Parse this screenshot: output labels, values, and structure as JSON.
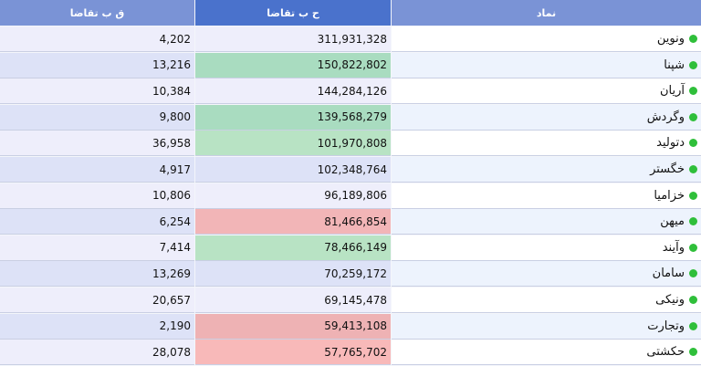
{
  "headers": {
    "col_q": "ق ب تقاضا",
    "col_h": "ح ب تقاضا",
    "col_symbol": "نماد"
  },
  "rows": [
    {
      "symbol": "ونوین",
      "h": "311,931,328",
      "q": "4,202",
      "q_bg": "#eeeefb",
      "h_bg": "#eeeefb",
      "s_bg": "#ffffff"
    },
    {
      "symbol": "شپنا",
      "h": "150,822,802",
      "q": "13,216",
      "q_bg": "#dde2f7",
      "h_bg": "#a9dcc0",
      "s_bg": "#edf3fd"
    },
    {
      "symbol": "آریان",
      "h": "144,284,126",
      "q": "10,384",
      "q_bg": "#eeeefb",
      "h_bg": "#eeeefb",
      "s_bg": "#ffffff"
    },
    {
      "symbol": "وگردش",
      "h": "139,568,279",
      "q": "9,800",
      "q_bg": "#dde2f7",
      "h_bg": "#a9dcc0",
      "s_bg": "#edf3fd"
    },
    {
      "symbol": "دتولید",
      "h": "101,970,808",
      "q": "36,958",
      "q_bg": "#eeeefb",
      "h_bg": "#b8e3c4",
      "s_bg": "#ffffff"
    },
    {
      "symbol": "خگستر",
      "h": "102,348,764",
      "q": "4,917",
      "q_bg": "#dde2f7",
      "h_bg": "#dde2f7",
      "s_bg": "#edf3fd"
    },
    {
      "symbol": "خزامیا",
      "h": "96,189,806",
      "q": "10,806",
      "q_bg": "#eeeefb",
      "h_bg": "#eeeefb",
      "s_bg": "#ffffff"
    },
    {
      "symbol": "میهن",
      "h": "81,466,854",
      "q": "6,254",
      "q_bg": "#dde2f7",
      "h_bg": "#f2b5b7",
      "s_bg": "#edf3fd"
    },
    {
      "symbol": "وآیند",
      "h": "78,466,149",
      "q": "7,414",
      "q_bg": "#eeeefb",
      "h_bg": "#b8e3c4",
      "s_bg": "#ffffff"
    },
    {
      "symbol": "سامان",
      "h": "70,259,172",
      "q": "13,269",
      "q_bg": "#dde2f7",
      "h_bg": "#dde2f7",
      "s_bg": "#edf3fd"
    },
    {
      "symbol": "ونیکی",
      "h": "69,145,478",
      "q": "20,657",
      "q_bg": "#eeeefb",
      "h_bg": "#eeeefb",
      "s_bg": "#ffffff"
    },
    {
      "symbol": "وتجارت",
      "h": "59,413,108",
      "q": "2,190",
      "q_bg": "#dde2f7",
      "h_bg": "#eeb2b4",
      "s_bg": "#edf3fd"
    },
    {
      "symbol": "حکشتی",
      "h": "57,765,702",
      "q": "28,078",
      "q_bg": "#eeeefb",
      "h_bg": "#f8b9b9",
      "s_bg": "#ffffff"
    }
  ],
  "status_dot_color": "#2fbf3a"
}
